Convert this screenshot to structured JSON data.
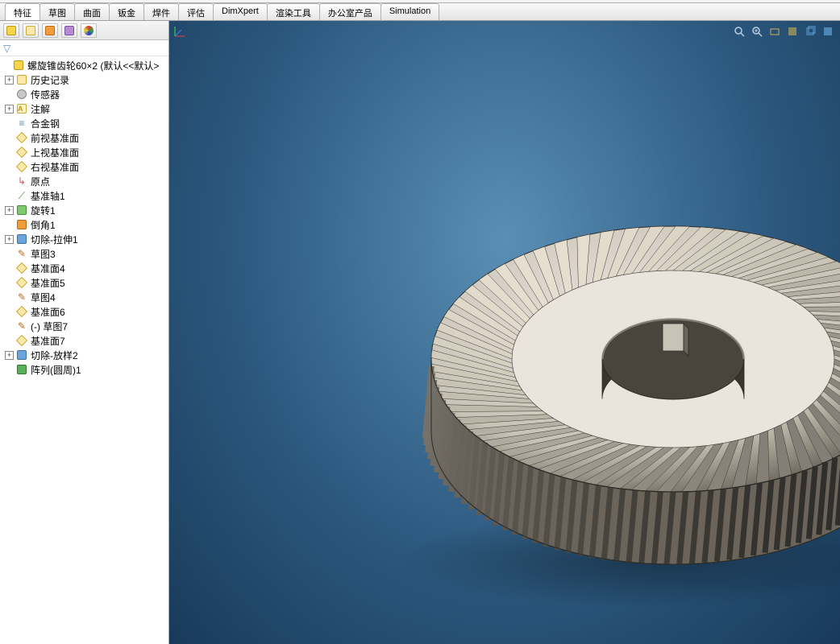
{
  "main_tabs": [
    {
      "label": "特征",
      "active": true
    },
    {
      "label": "草图"
    },
    {
      "label": "曲面"
    },
    {
      "label": "钣金"
    },
    {
      "label": "焊件"
    },
    {
      "label": "评估"
    },
    {
      "label": "DimXpert"
    },
    {
      "label": "渲染工具"
    },
    {
      "label": "办公室产品"
    },
    {
      "label": "Simulation"
    }
  ],
  "tree": {
    "root_label": "螺旋锥齿轮60×2  (默认<<默认>",
    "items": [
      {
        "exp": "+",
        "icon": "history",
        "label": "历史记录",
        "indent": 1
      },
      {
        "exp": "",
        "icon": "sensor",
        "label": "传感器",
        "indent": 1
      },
      {
        "exp": "+",
        "icon": "annotation",
        "label": "注解",
        "indent": 1
      },
      {
        "exp": "",
        "icon": "material",
        "label": "合金钢",
        "indent": 1
      },
      {
        "exp": "",
        "icon": "plane",
        "label": "前视基准面",
        "indent": 1
      },
      {
        "exp": "",
        "icon": "plane",
        "label": "上视基准面",
        "indent": 1
      },
      {
        "exp": "",
        "icon": "plane",
        "label": "右视基准面",
        "indent": 1
      },
      {
        "exp": "",
        "icon": "origin",
        "label": "原点",
        "indent": 1
      },
      {
        "exp": "",
        "icon": "axis",
        "label": "基准轴1",
        "indent": 1
      },
      {
        "exp": "+",
        "icon": "revolve",
        "label": "旋转1",
        "indent": 1
      },
      {
        "exp": "",
        "icon": "chamfer",
        "label": "倒角1",
        "indent": 1
      },
      {
        "exp": "+",
        "icon": "cutextrude",
        "label": "切除-拉伸1",
        "indent": 1
      },
      {
        "exp": "",
        "icon": "sketch",
        "label": "草图3",
        "indent": 1
      },
      {
        "exp": "",
        "icon": "plane",
        "label": "基准面4",
        "indent": 1
      },
      {
        "exp": "",
        "icon": "plane",
        "label": "基准面5",
        "indent": 1
      },
      {
        "exp": "",
        "icon": "sketch",
        "label": "草图4",
        "indent": 1
      },
      {
        "exp": "",
        "icon": "plane",
        "label": "基准面6",
        "indent": 1
      },
      {
        "exp": "",
        "icon": "sketch",
        "label": "(-) 草图7",
        "indent": 1
      },
      {
        "exp": "",
        "icon": "plane",
        "label": "基准面7",
        "indent": 1
      },
      {
        "exp": "+",
        "icon": "cutloft",
        "label": "切除-放样2",
        "indent": 1
      },
      {
        "exp": "",
        "icon": "pattern",
        "label": "阵列(圆周)1",
        "indent": 1
      }
    ]
  },
  "viewport": {
    "bg_center": "#5a8fb5",
    "bg_mid": "#2d5a80",
    "bg_edge": "#183a5a",
    "gear_light": "#e9e4dc",
    "gear_mid": "#c9c2b6",
    "gear_dark": "#6b645a",
    "gear_shadow": "#3a362f"
  }
}
